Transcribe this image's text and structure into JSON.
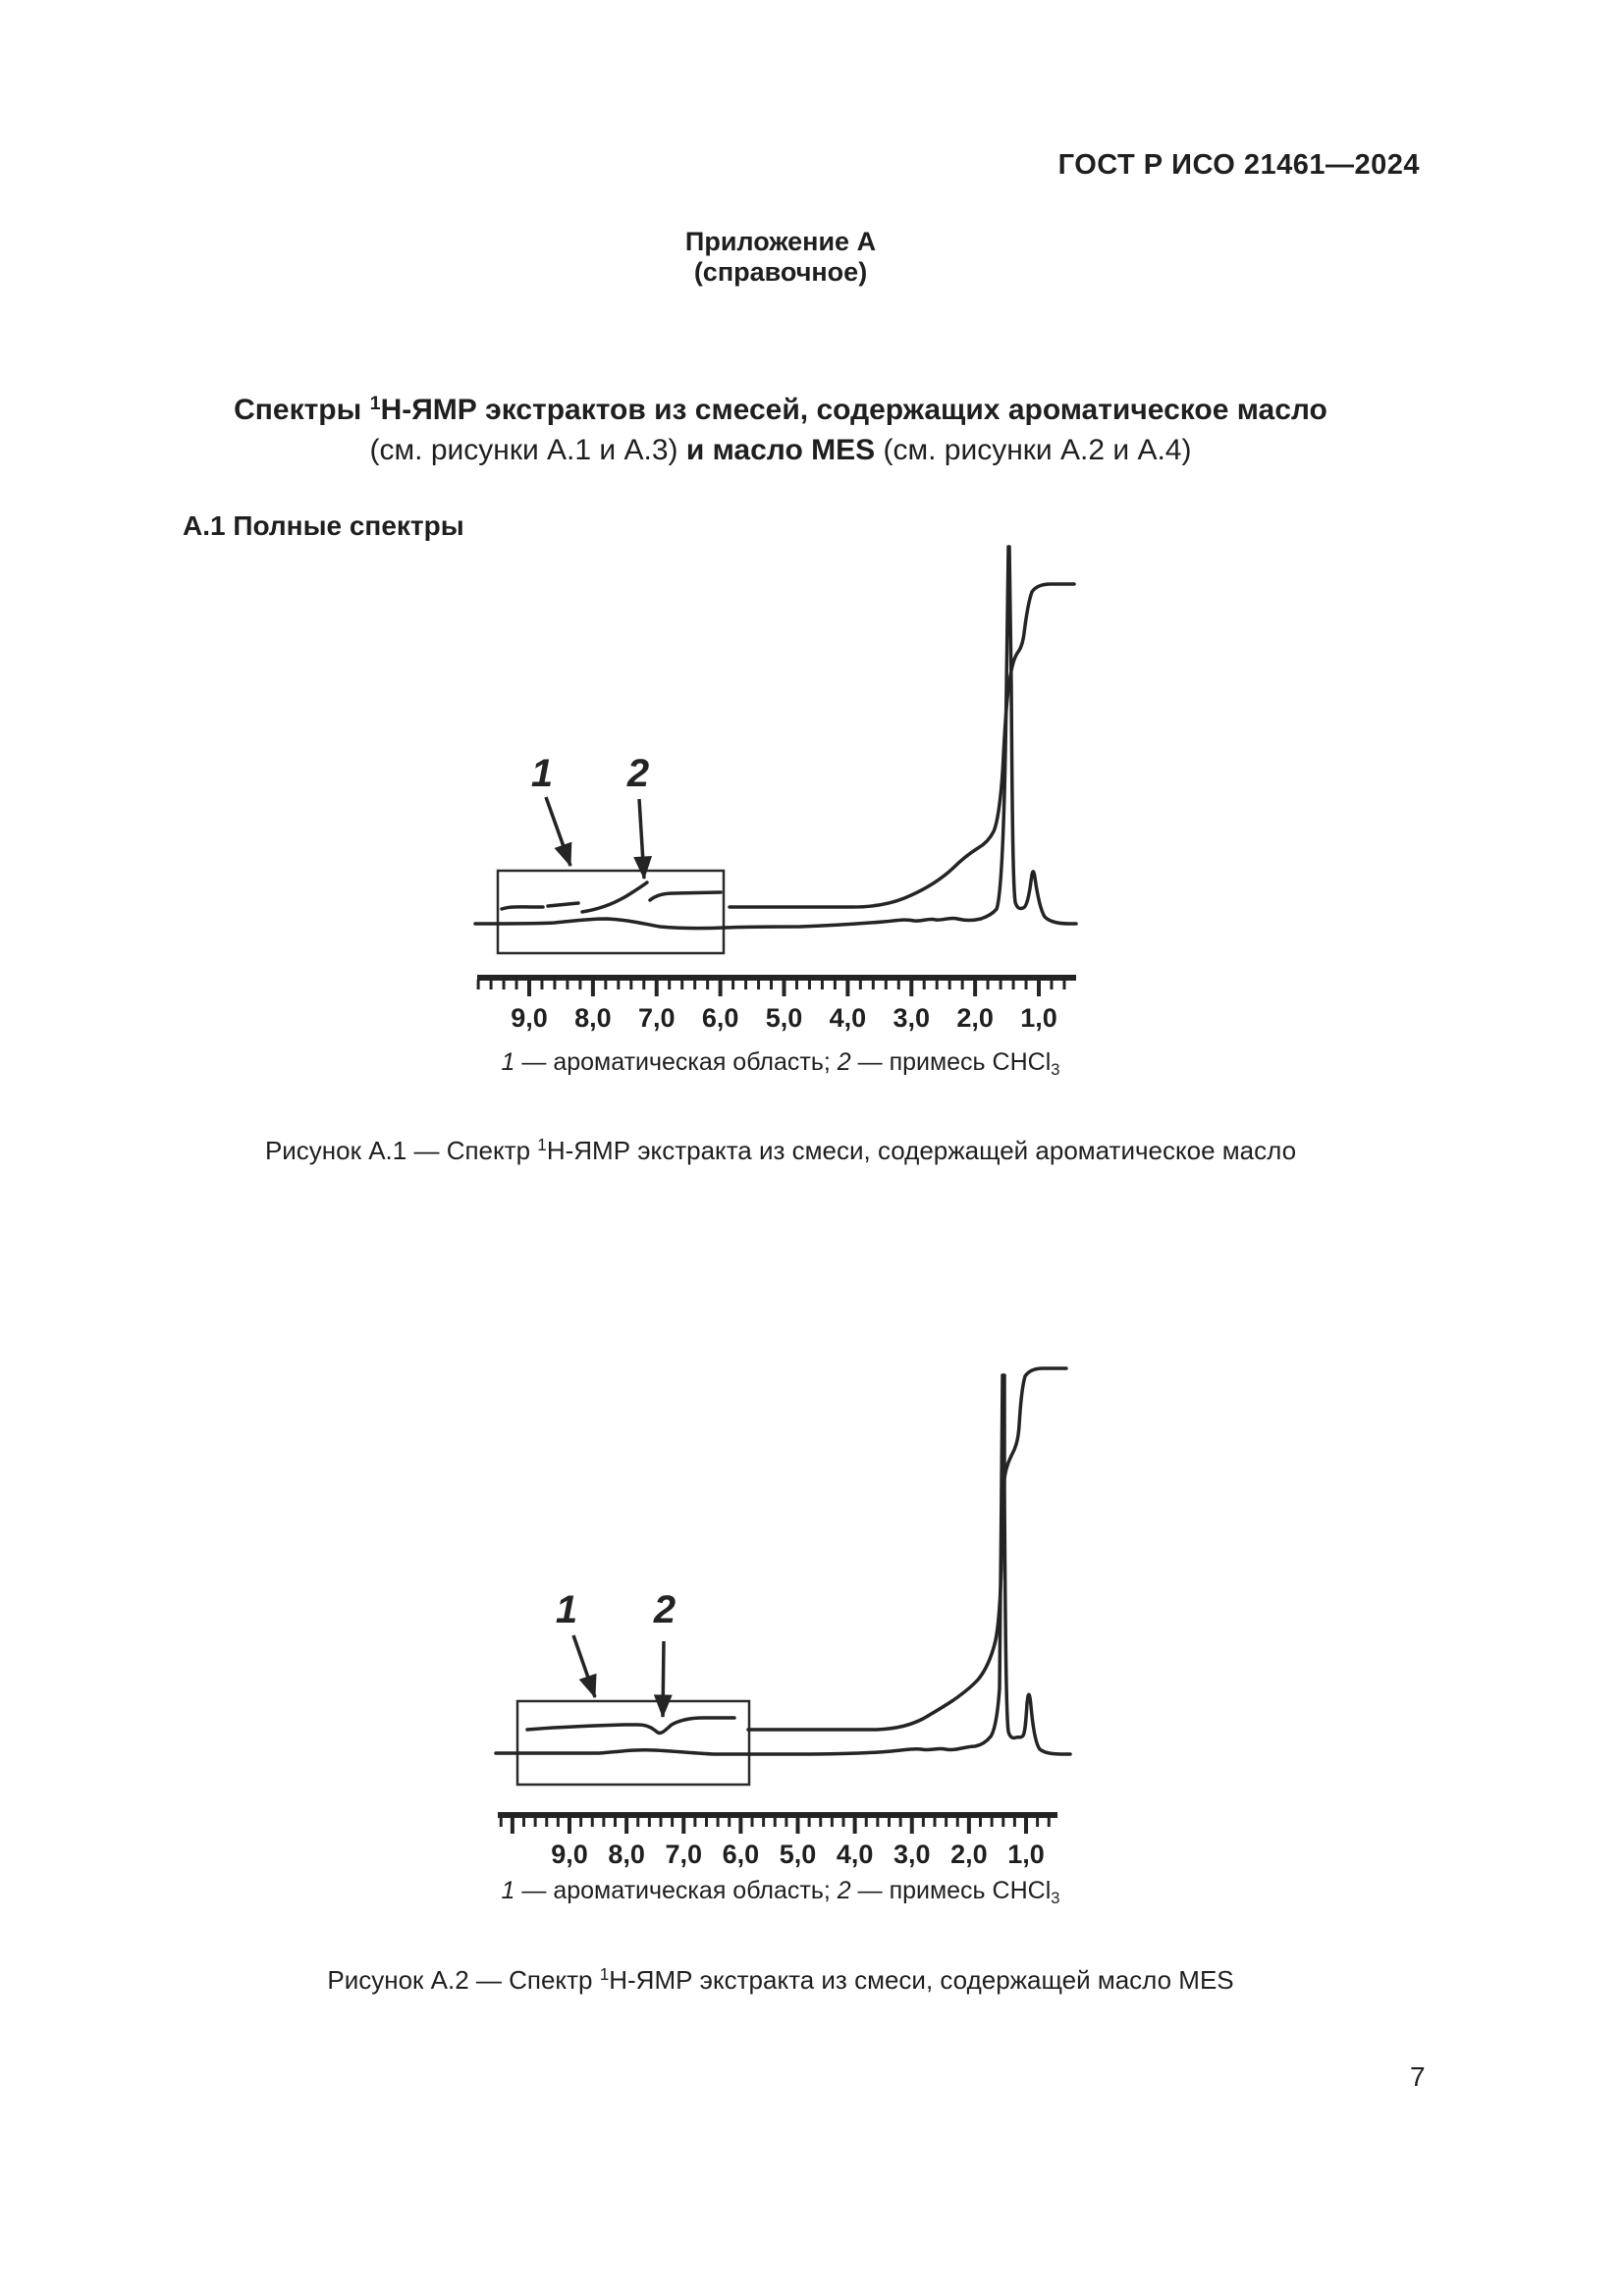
{
  "header": {
    "doc_code": "ГОСТ Р ИСО 21461—2024"
  },
  "page_number": "7",
  "appendix": {
    "title": "Приложение А",
    "subtitle": "(справочное)"
  },
  "main_title": {
    "line1_pre": "Спектры ",
    "line1_sup": "1",
    "line1_post": "Н-ЯМР экстрактов из смесей, содержащих ароматическое масло",
    "line2_pre": "(см. рисунки А.1 и А.3) ",
    "line2_bold": "и масло MES",
    "line2_post": " (см. рисунки А.2 и А.4)"
  },
  "section": {
    "heading": "А.1  Полные спектры"
  },
  "figures": [
    {
      "callouts": [
        "1",
        "2"
      ],
      "axis_labels": [
        "9,0",
        "8,0",
        "7,0",
        "6,0",
        "5,0",
        "4,0",
        "3,0",
        "2,0",
        "1,0"
      ],
      "key": {
        "item1_label": "1",
        "item1_text": " — ароматическая область; ",
        "item2_label": "2",
        "item2_text": " — примесь ",
        "chem_formula": "CHCl",
        "chem_subscript": "3"
      },
      "caption": {
        "pre": "Рисунок А.1 — Спектр ",
        "sup": "1",
        "post": "Н-ЯМР экстракта из смеси, содержащей ароматическое масло"
      }
    },
    {
      "callouts": [
        "1",
        "2"
      ],
      "axis_labels": [
        "9,0",
        "8,0",
        "7,0",
        "6,0",
        "5,0",
        "4,0",
        "3,0",
        "2,0",
        "1,0"
      ],
      "key": {
        "item1_label": "1",
        "item1_text": " — ароматическая область; ",
        "item2_label": "2",
        "item2_text": " — примесь ",
        "chem_formula": "CHCl",
        "chem_subscript": "3"
      },
      "caption": {
        "pre": "Рисунок А.2 — Спектр ",
        "sup": "1",
        "post": "Н-ЯМР экстракта из смеси, содержащей масло MES"
      }
    }
  ],
  "chart_data": [
    {
      "type": "line",
      "title": "Спектр 1Н-ЯМР экстракта из смеси, содержащей ароматическое масло",
      "xlabel": "",
      "x_axis": {
        "tick_labels": [
          "9,0",
          "8,0",
          "7,0",
          "6,0",
          "5,0",
          "4,0",
          "3,0",
          "2,0",
          "1,0"
        ],
        "range": [
          9.8,
          0.4
        ],
        "reversed": true,
        "minor_tick_step": 0.2
      },
      "series": [
        {
          "name": "спектр",
          "features": [
            {
              "ppm": 1.3,
              "peak": "очень высокий узкий пик (обрезан сверху)"
            },
            {
              "ppm": 0.9,
              "peak": "малый узкий пик"
            },
            {
              "ppm_range": [
                9.5,
                5.9
              ],
              "peak": "слабые сигналы ароматической области (в рамке)"
            }
          ]
        },
        {
          "name": "интегральная кривая",
          "features": [
            {
              "ppm_range": [
                9.5,
                5.9
              ],
              "описание": "ступенчатые сегменты в рамке"
            },
            {
              "ppm_range": [
                3.5,
                1.0
              ],
              "описание": "основной подъём к плато"
            }
          ]
        }
      ],
      "annotations": [
        {
          "label": "1",
          "meaning": "ароматическая область",
          "ppm_range": [
            9.5,
            5.9
          ]
        },
        {
          "label": "2",
          "meaning": "примесь CHCl3",
          "ppm": 7.2
        }
      ]
    },
    {
      "type": "line",
      "title": "Спектр 1Н-ЯМР экстракта из смеси, содержащей масло MES",
      "xlabel": "",
      "x_axis": {
        "tick_labels": [
          "9,0",
          "8,0",
          "7,0",
          "6,0",
          "5,0",
          "4,0",
          "3,0",
          "2,0",
          "1,0"
        ],
        "range": [
          10.2,
          0.4
        ],
        "reversed": true,
        "minor_tick_step": 0.2
      },
      "series": [
        {
          "name": "спектр",
          "features": [
            {
              "ppm": 1.3,
              "peak": "очень высокий узкий пик"
            },
            {
              "ppm": 0.9,
              "peak": "малый узкий пик"
            },
            {
              "ppm_range": [
                9.5,
                5.9
              ],
              "peak": "практически плоская ароматическая область (в рамке)"
            }
          ]
        },
        {
          "name": "интегральная кривая",
          "features": [
            {
              "ppm_range": [
                9.5,
                5.9
              ],
              "описание": "почти плоская, малая ступень у 7,3"
            },
            {
              "ppm_range": [
                3.5,
                1.0
              ],
              "описание": "основной подъём к плато"
            }
          ]
        }
      ],
      "annotations": [
        {
          "label": "1",
          "meaning": "ароматическая область",
          "ppm_range": [
            9.5,
            5.9
          ]
        },
        {
          "label": "2",
          "meaning": "примесь CHCl3",
          "ppm": 7.3
        }
      ]
    }
  ]
}
